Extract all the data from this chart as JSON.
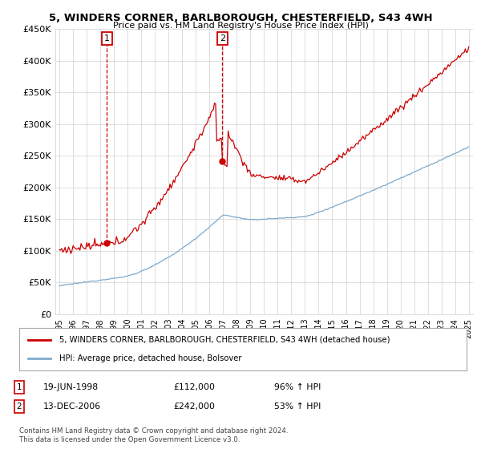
{
  "title": "5, WINDERS CORNER, BARLBOROUGH, CHESTERFIELD, S43 4WH",
  "subtitle": "Price paid vs. HM Land Registry's House Price Index (HPI)",
  "legend_line1": "5, WINDERS CORNER, BARLBOROUGH, CHESTERFIELD, S43 4WH (detached house)",
  "legend_line2": "HPI: Average price, detached house, Bolsover",
  "annotation1_date": "19-JUN-1998",
  "annotation1_price": "£112,000",
  "annotation1_hpi": "96% ↑ HPI",
  "annotation2_date": "13-DEC-2006",
  "annotation2_price": "£242,000",
  "annotation2_hpi": "53% ↑ HPI",
  "copyright": "Contains HM Land Registry data © Crown copyright and database right 2024.\nThis data is licensed under the Open Government Licence v3.0.",
  "red_color": "#cc0000",
  "blue_color": "#7faacc",
  "ylim": [
    0,
    450000
  ],
  "yticks": [
    0,
    50000,
    100000,
    150000,
    200000,
    250000,
    300000,
    350000,
    400000,
    450000
  ],
  "ytick_labels": [
    "£0",
    "£50K",
    "£100K",
    "£150K",
    "£200K",
    "£250K",
    "£300K",
    "£350K",
    "£400K",
    "£450K"
  ],
  "point1_x": 1998.47,
  "point1_y": 112000,
  "point2_x": 2006.95,
  "point2_y": 242000,
  "xlim_left": 1994.7,
  "xlim_right": 2025.3
}
